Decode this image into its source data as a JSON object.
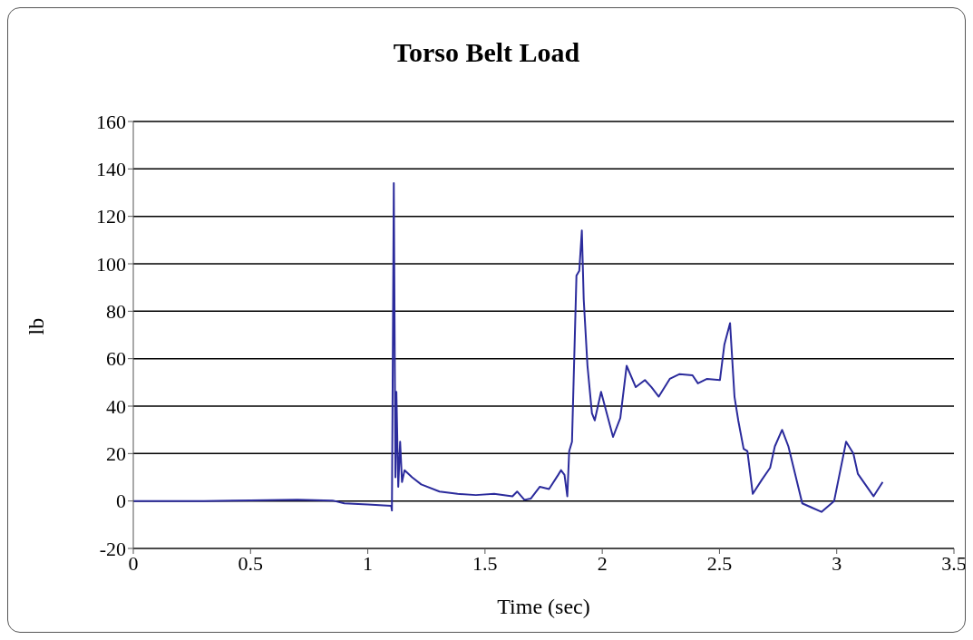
{
  "chart_data": {
    "type": "line",
    "title": "Torso Belt Load",
    "xlabel": "Time (sec)",
    "ylabel": "lb",
    "x": [
      0,
      0.3,
      0.5,
      0.7,
      0.85,
      0.9,
      1.0,
      1.1,
      1.103,
      1.111,
      1.118,
      1.122,
      1.13,
      1.138,
      1.146,
      1.157,
      1.189,
      1.228,
      1.306,
      1.383,
      1.461,
      1.539,
      1.617,
      1.637,
      1.668,
      1.695,
      1.734,
      1.773,
      1.812,
      1.824,
      1.839,
      1.851,
      1.859,
      1.871,
      1.89,
      1.902,
      1.913,
      1.921,
      1.937,
      1.956,
      1.968,
      1.995,
      2.046,
      2.077,
      2.104,
      2.143,
      2.182,
      2.21,
      2.241,
      2.288,
      2.33,
      2.385,
      2.408,
      2.447,
      2.502,
      2.521,
      2.545,
      2.564,
      2.58,
      2.603,
      2.619,
      2.642,
      2.681,
      2.716,
      2.736,
      2.767,
      2.794,
      2.853,
      2.892,
      2.935,
      2.989,
      3.04,
      3.071,
      3.09,
      3.157,
      3.196
    ],
    "series": [
      {
        "color": "#2b2b9c",
        "values": [
          0,
          0,
          0.3,
          0.5,
          0.2,
          -1,
          -1.5,
          -2,
          -4,
          134,
          10,
          46,
          6,
          25,
          8,
          13,
          10,
          7,
          4,
          3,
          2.5,
          3,
          2,
          4,
          0.5,
          1,
          6,
          5,
          11,
          13,
          11,
          2,
          21,
          25,
          95,
          97,
          114,
          85,
          57,
          37,
          34,
          46,
          27,
          35,
          57,
          48,
          51,
          48,
          44,
          51.5,
          53.5,
          53,
          49.6,
          51.5,
          51,
          66,
          75,
          44,
          34,
          22,
          21,
          3,
          9,
          14,
          23,
          30,
          23,
          -1,
          -2.7,
          -4.6,
          0,
          25,
          20,
          11.5,
          2,
          8
        ]
      }
    ],
    "xlim": [
      0,
      3.5
    ],
    "xticks": [
      0,
      0.5,
      1,
      1.5,
      2,
      2.5,
      3,
      3.5
    ],
    "ylim": [
      -20,
      160
    ],
    "yticks": [
      -20,
      0,
      20,
      40,
      60,
      80,
      100,
      120,
      140,
      160
    ],
    "grid": "y",
    "legend": false,
    "marker": "none",
    "line_style": "solid"
  }
}
